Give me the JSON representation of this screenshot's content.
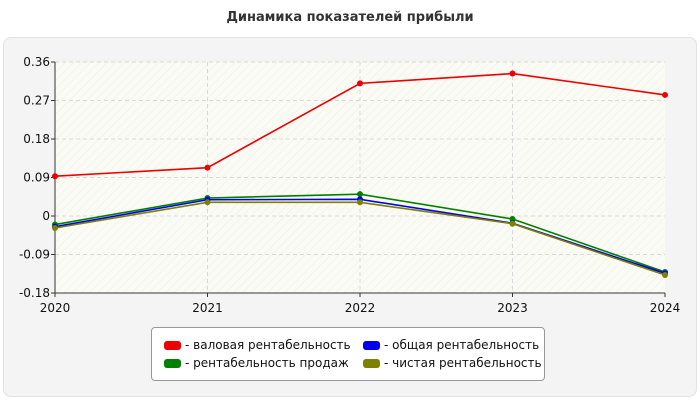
{
  "chart_data": {
    "type": "line",
    "title": "Динамика показателей прибыли",
    "xlabel": "",
    "ylabel": "",
    "categories": [
      "2020",
      "2021",
      "2022",
      "2023",
      "2024"
    ],
    "ylim": [
      -0.18,
      0.36
    ],
    "yticks": [
      "0.36",
      "0.27",
      "0.18",
      "0.09",
      "0",
      "-0.09",
      "-0.18"
    ],
    "ytick_values": [
      0.36,
      0.27,
      0.18,
      0.09,
      0,
      -0.09,
      -0.18
    ],
    "grid": true,
    "legend_position": "bottom",
    "series": [
      {
        "name": "- валовая рентабельность",
        "color": "#ee0000",
        "values": [
          0.093,
          0.113,
          0.31,
          0.333,
          0.283
        ]
      },
      {
        "name": "- рентабельность продаж",
        "color": "#008000",
        "values": [
          -0.02,
          0.042,
          0.051,
          -0.007,
          -0.131
        ]
      },
      {
        "name": "- общая рентабельность",
        "color": "#0000ee",
        "values": [
          -0.025,
          0.038,
          0.039,
          -0.017,
          -0.134
        ]
      },
      {
        "name": "- чистая рентабельность",
        "color": "#808000",
        "values": [
          -0.028,
          0.032,
          0.032,
          -0.018,
          -0.138
        ]
      }
    ]
  }
}
